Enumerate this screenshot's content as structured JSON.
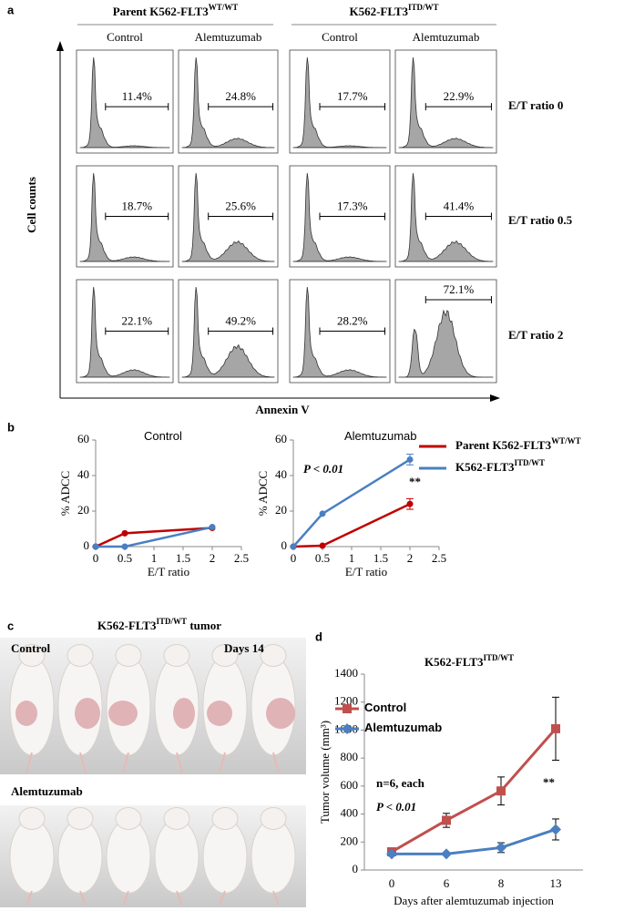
{
  "figure": {
    "panel_labels": [
      "a",
      "b",
      "c",
      "d"
    ],
    "flow": {
      "groups": [
        {
          "base": "Parent K562-FLT3",
          "sup": "WT/WT"
        },
        {
          "base": "K562-FLT3",
          "sup": "ITD/WT"
        }
      ],
      "conditions": [
        "Control",
        "Alemtuzumab",
        "Control",
        "Alemtuzumab"
      ],
      "rows": [
        {
          "label": "E/T ratio 0",
          "percents": [
            "11.4%",
            "24.8%",
            "17.7%",
            "22.9%"
          ]
        },
        {
          "label": "E/T ratio 0.5",
          "percents": [
            "18.7%",
            "25.6%",
            "17.3%",
            "41.4%"
          ]
        },
        {
          "label": "E/T ratio 2",
          "percents": [
            "22.1%",
            "49.2%",
            "28.2%",
            "72.1%"
          ]
        }
      ],
      "y_label": "Cell counts",
      "x_label": "Annexin V"
    },
    "photos": {
      "title": {
        "base": "K562-FLT3",
        "sup": "ITD/WT",
        "suffix": " tumor"
      },
      "top_label": "Control",
      "top_right": "Days 14",
      "bottom_label": "Alemtuzumab"
    }
  },
  "chart_data": [
    {
      "type": "line",
      "title": "Control",
      "x_label": "E/T ratio",
      "y_label": "% ADCC",
      "x": [
        0,
        0.5,
        2
      ],
      "xlim": [
        0,
        2.5
      ],
      "xticks": [
        0,
        0.5,
        1,
        1.5,
        2,
        2.5
      ],
      "ylim": [
        0,
        60
      ],
      "yticks": [
        0,
        20,
        40,
        60
      ],
      "series": [
        {
          "name": "Parent K562-FLT3",
          "name_sup": "WT/WT",
          "color": "#c00000",
          "marker": "circle",
          "values": [
            0,
            7.5,
            10.5
          ]
        },
        {
          "name": "K562-FLT3",
          "name_sup": "ITD/WT",
          "color": "#4a7fc1",
          "marker": "circle",
          "values": [
            0,
            0,
            11
          ]
        }
      ]
    },
    {
      "type": "line",
      "title": "Alemtuzumab",
      "x_label": "E/T ratio",
      "y_label": "% ADCC",
      "x": [
        0,
        0.5,
        2
      ],
      "xlim": [
        0,
        2.5
      ],
      "xticks": [
        0,
        0.5,
        1,
        1.5,
        2,
        2.5
      ],
      "ylim": [
        0,
        60
      ],
      "yticks": [
        0,
        20,
        40,
        60
      ],
      "legend": "right",
      "annotations": [
        "P < 0.01",
        "**"
      ],
      "series": [
        {
          "name": "Parent K562-FLT3",
          "name_sup": "WT/WT",
          "color": "#c00000",
          "marker": "circle",
          "values": [
            0,
            0.5,
            24
          ],
          "errors": [
            null,
            null,
            3
          ]
        },
        {
          "name": "K562-FLT3",
          "name_sup": "ITD/WT",
          "color": "#4a7fc1",
          "marker": "circle",
          "values": [
            0,
            18.5,
            49
          ],
          "errors": [
            null,
            null,
            3
          ]
        }
      ]
    },
    {
      "type": "line",
      "title": "K562-FLT3",
      "title_sup": "ITD/WT",
      "x_label": "Days after alemtuzumab injection",
      "y_label": "Tumor volume (mm³)",
      "categories": [
        "0",
        "6",
        "8",
        "13"
      ],
      "ylim": [
        0,
        1400
      ],
      "yticks": [
        0,
        200,
        400,
        600,
        800,
        1000,
        1200,
        1400
      ],
      "legend": "top-left",
      "annotations": [
        "n=6, each",
        "P < 0.01",
        "**"
      ],
      "series": [
        {
          "name": "Control",
          "color": "#c0504d",
          "marker": "square",
          "values": [
            130,
            355,
            565,
            1010
          ],
          "errors": [
            10,
            50,
            100,
            225
          ]
        },
        {
          "name": "Alemtuzumab",
          "color": "#4a7fc1",
          "marker": "diamond",
          "values": [
            115,
            115,
            160,
            290
          ],
          "errors": [
            5,
            10,
            35,
            75
          ]
        }
      ]
    }
  ]
}
